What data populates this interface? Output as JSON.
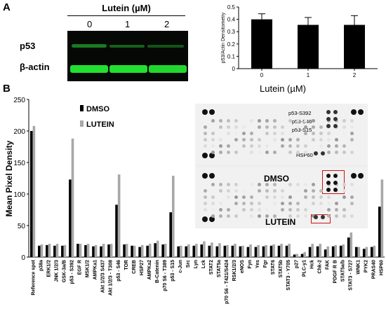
{
  "panels": {
    "a": "A",
    "b": "B"
  },
  "blot": {
    "title": "Lutein (µM)",
    "doses": [
      "0",
      "1",
      "2"
    ],
    "labels": {
      "p53": "p53",
      "actin": "β-actin"
    }
  },
  "colors": {
    "dmso": "#000000",
    "lutein": "#a8a8a8",
    "blot_band": "#22e030",
    "highlight": "#cc1111"
  },
  "array": {
    "labels": {
      "dmso": "DMSO",
      "lutein": "LUTEIN"
    },
    "annotations": [
      "p53-S392",
      "p53-S46",
      "p53-S15",
      "HSP60"
    ]
  },
  "chart_data": [
    {
      "type": "bar",
      "categories": [
        "0",
        "1",
        "2"
      ],
      "values": [
        0.4,
        0.355,
        0.355
      ],
      "errors": [
        0.045,
        0.06,
        0.075
      ],
      "xlabel": "Lutein (µM)",
      "ylabel": "p53/Actin Densitometry",
      "ylim": [
        0,
        0.5
      ],
      "yticks": [
        "0",
        "0.1",
        "0.2",
        "0.3",
        "0.4",
        "0.5"
      ],
      "grid": false
    },
    {
      "type": "bar",
      "categories": [
        "Reference spot",
        "p38a",
        "ERK1/2",
        "JNK 1/2/3",
        "GSK-3a/B",
        "p53 - S392",
        "EGF R",
        "MSK1/2",
        "AMPKa1",
        "Akt 1/2/3 S437",
        "Akt 1/2/3 - T308",
        "p53 - S46",
        "TOR",
        "CREB",
        "HSP27",
        "AMPKa2",
        "B-Catenin",
        "p70 S6 - T389",
        "p53 - S15",
        "c-Jun",
        "Src",
        "Lyn",
        "Lck",
        "STAT2",
        "STAT5a",
        "p70 S6 - T421/S424",
        "RSK1/2/3",
        "eNOS",
        "Fyn",
        "Yes",
        "Fgr",
        "STAT6",
        "STAT5b",
        "STAT3 - Y705",
        "p27",
        "PLC-y1",
        "Hck",
        "Chk-2",
        "FAK",
        "PDGF R B",
        "STAT5a/b",
        "STAT3 - S727",
        "WNK1",
        "PYK2",
        "PRAS40",
        "HSP60"
      ],
      "series": [
        {
          "name": "DMSO",
          "values": [
            200,
            18,
            19,
            18,
            18,
            123,
            21,
            19,
            17,
            17,
            20,
            83,
            20,
            18,
            16,
            18,
            22,
            20,
            71,
            17,
            17,
            18,
            20,
            18,
            17,
            18,
            18,
            17,
            16,
            16,
            17,
            18,
            18,
            18,
            4,
            5,
            16,
            17,
            12,
            17,
            18,
            31,
            16,
            13,
            16,
            80
          ]
        },
        {
          "name": "LUTEIN",
          "values": [
            208,
            20,
            21,
            21,
            19,
            188,
            21,
            21,
            19,
            21,
            21,
            131,
            21,
            18,
            19,
            21,
            26,
            21,
            129,
            18,
            20,
            21,
            25,
            23,
            22,
            19,
            21,
            18,
            20,
            19,
            19,
            20,
            21,
            21,
            5,
            8,
            21,
            21,
            17,
            19,
            20,
            39,
            16,
            16,
            18,
            123
          ]
        }
      ],
      "ylabel": "Mean Pixel Density",
      "ylim": [
        0,
        250
      ],
      "yticks": [
        "0",
        "50",
        "100",
        "150",
        "200",
        "250"
      ],
      "legend": "top-left",
      "grid": false
    }
  ]
}
